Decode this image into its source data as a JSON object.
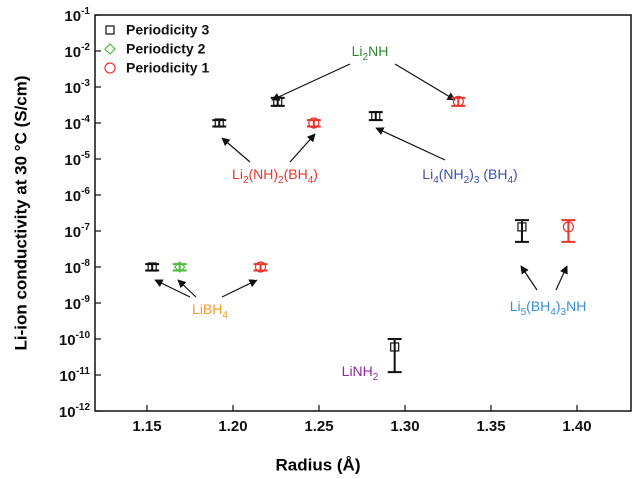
{
  "chart_data": {
    "type": "scatter",
    "x_label": "Radius (Å)",
    "y_label": "Li-ion conductivity at 30 °C (S/cm)",
    "xlim": [
      1.12,
      1.432
    ],
    "xticks": [
      1.15,
      1.2,
      1.25,
      1.3,
      1.35,
      1.4
    ],
    "xtick_labels": [
      "1.15",
      "1.20",
      "1.25",
      "1.30",
      "1.35",
      "1.40"
    ],
    "ylim": [
      1e-12,
      0.1
    ],
    "log_y": true,
    "yticks": [
      {
        "value": 1e-12,
        "label": "10-12"
      },
      {
        "value": 1e-11,
        "label": "10-11"
      },
      {
        "value": 1e-10,
        "label": "10-10"
      },
      {
        "value": 1e-09,
        "label": "10-9"
      },
      {
        "value": 1e-08,
        "label": "10-8"
      },
      {
        "value": 1e-07,
        "label": "10-7"
      },
      {
        "value": 1e-06,
        "label": "10-6"
      },
      {
        "value": 1e-05,
        "label": "10-5"
      },
      {
        "value": 0.0001,
        "label": "10-4"
      },
      {
        "value": 0.001,
        "label": "10-3"
      },
      {
        "value": 0.01,
        "label": "10-2"
      },
      {
        "value": 0.1,
        "label": "10-1"
      }
    ],
    "legend": "top-left",
    "series": [
      {
        "name": "Periodicity 3",
        "color": "#111111",
        "marker": "square",
        "x": [
          1.153,
          1.192,
          1.226,
          1.283,
          1.294,
          1.368
        ],
        "values": [
          1e-08,
          0.0001,
          0.0004,
          0.00016,
          6e-11,
          1.3e-07
        ],
        "y_low": [
          8e-09,
          8e-05,
          0.0003,
          0.00012,
          1.2e-11,
          5e-08
        ],
        "y_high": [
          1.2e-08,
          0.00012,
          0.0005,
          0.0002,
          1e-10,
          2e-07
        ]
      },
      {
        "name": "Periodicty 2",
        "color": "#4cbb3c",
        "marker": "diamond",
        "x": [
          1.169
        ],
        "values": [
          1e-08
        ],
        "y_low": [
          8e-09
        ],
        "y_high": [
          1.2e-08
        ]
      },
      {
        "name": "Periodicity 1",
        "color": "#e8352d",
        "marker": "circle",
        "x": [
          1.216,
          1.247,
          1.331,
          1.395
        ],
        "values": [
          1e-08,
          0.0001,
          0.0004,
          1.3e-07
        ],
        "y_low": [
          8e-09,
          8e-05,
          0.0003,
          5e-08
        ],
        "y_high": [
          1.2e-08,
          0.00012,
          0.0005,
          2e-07
        ]
      }
    ],
    "annotations": [
      {
        "text": "Li2NH",
        "color": "#2a8a2a"
      },
      {
        "text": "Li2(NH)2(BH4)",
        "color": "#e8352d"
      },
      {
        "text": "Li4(NH2)3 (BH4)",
        "color": "#3a50b0"
      },
      {
        "text": "LiBH4",
        "color": "#f39a2e"
      },
      {
        "text": "LiNH2",
        "color": "#8a2a9a"
      },
      {
        "text": "Li5(BH4)3NH",
        "color": "#3a8fd6"
      }
    ]
  }
}
